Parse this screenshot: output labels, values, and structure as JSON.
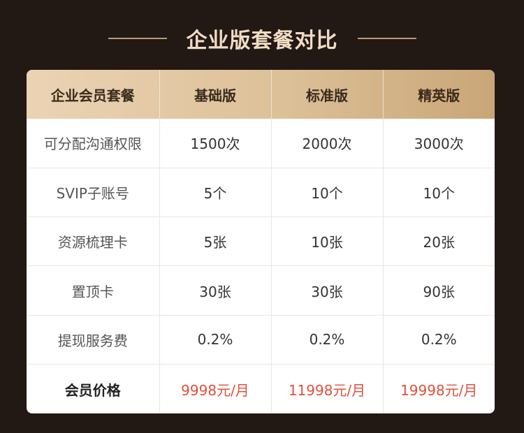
{
  "title": "企业版套餐对比",
  "table": {
    "headers": [
      "企业会员套餐",
      "基础版",
      "标准版",
      "精英版"
    ],
    "rows": [
      {
        "label": "可分配沟通权限",
        "values": [
          "1500次",
          "2000次",
          "3000次"
        ]
      },
      {
        "label": "SVIP子账号",
        "values": [
          "5个",
          "10个",
          "10个"
        ]
      },
      {
        "label": "资源梳理卡",
        "values": [
          "5张",
          "10张",
          "20张"
        ]
      },
      {
        "label": "置顶卡",
        "values": [
          "30张",
          "30张",
          "90张"
        ]
      },
      {
        "label": "提现服务费",
        "values": [
          "0.2%",
          "0.2%",
          "0.2%"
        ]
      }
    ],
    "price_row": {
      "label": "会员价格",
      "values": [
        "9998元/月",
        "11998元/月",
        "19998元/月"
      ]
    }
  },
  "colors": {
    "background": "#221814",
    "title": "#f1dcc3",
    "header_gradient_start": "#ebd3b4",
    "header_gradient_end": "#c9a677",
    "price": "#e0503a"
  }
}
